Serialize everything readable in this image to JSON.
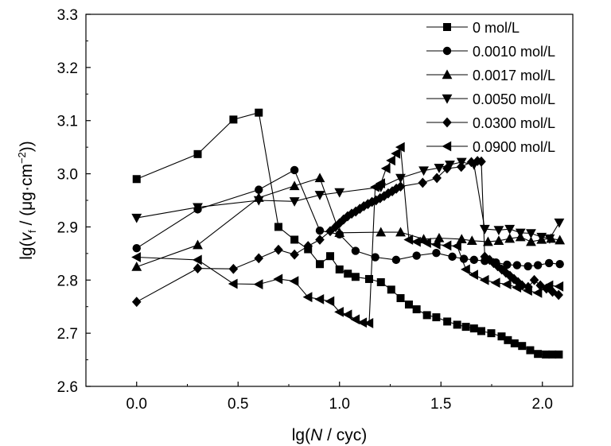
{
  "chart_data": {
    "type": "line",
    "title": "",
    "xlabel_parts": [
      "lg(",
      "N",
      " / cyc)"
    ],
    "ylabel_parts": [
      "lg(",
      "v",
      "f",
      " / (μg·cm",
      "−2",
      "))"
    ],
    "xlim": [
      -0.25,
      2.15
    ],
    "ylim": [
      2.6,
      3.3
    ],
    "xticks": [
      0.0,
      0.5,
      1.0,
      1.5,
      2.0
    ],
    "xtick_labels": [
      "0.0",
      "0.5",
      "1.0",
      "1.5",
      "2.0"
    ],
    "yticks": [
      2.6,
      2.7,
      2.8,
      2.9,
      3.0,
      3.1,
      3.2,
      3.3
    ],
    "ytick_labels": [
      "2.6",
      "2.7",
      "2.8",
      "2.9",
      "3.0",
      "3.1",
      "3.2",
      "3.3"
    ],
    "grid": false,
    "legend_position": "top-right",
    "series": [
      {
        "name": "0 mol/L",
        "marker": "square",
        "x": [
          0.0,
          0.301,
          0.477,
          0.602,
          0.699,
          0.778,
          0.845,
          0.903,
          0.954,
          1.0,
          1.041,
          1.079,
          1.146,
          1.204,
          1.255,
          1.301,
          1.342,
          1.38,
          1.431,
          1.477,
          1.531,
          1.58,
          1.623,
          1.663,
          1.699,
          1.748,
          1.799,
          1.83,
          1.863,
          1.9,
          1.94,
          1.978,
          2.017,
          2.049,
          2.081
        ],
        "y": [
          2.99,
          3.037,
          3.102,
          3.115,
          2.9,
          2.876,
          2.858,
          2.83,
          2.845,
          2.82,
          2.812,
          2.806,
          2.802,
          2.796,
          2.782,
          2.766,
          2.754,
          2.745,
          2.734,
          2.73,
          2.722,
          2.716,
          2.712,
          2.709,
          2.704,
          2.7,
          2.694,
          2.687,
          2.681,
          2.676,
          2.668,
          2.661,
          2.66,
          2.66,
          2.66
        ]
      },
      {
        "name": "0.0010 mol/L",
        "marker": "circle",
        "x": [
          0.0,
          0.301,
          0.602,
          0.778,
          0.903,
          1.0,
          1.079,
          1.176,
          1.279,
          1.38,
          1.477,
          1.556,
          1.613,
          1.663,
          1.716,
          1.771,
          1.826,
          1.875,
          1.929,
          1.978,
          2.033,
          2.086
        ],
        "y": [
          2.86,
          2.933,
          2.97,
          3.007,
          2.893,
          2.886,
          2.855,
          2.843,
          2.838,
          2.846,
          2.851,
          2.844,
          2.84,
          2.838,
          2.836,
          2.833,
          2.829,
          2.828,
          2.826,
          2.828,
          2.832,
          2.83
        ]
      },
      {
        "name": "0.0017 mol/L",
        "marker": "triangle-up",
        "x": [
          0.0,
          0.301,
          0.602,
          0.778,
          0.903,
          1.0,
          1.204,
          1.301,
          1.415,
          1.491,
          1.602,
          1.653,
          1.732,
          1.785,
          1.839,
          1.892,
          1.944,
          1.996,
          2.043,
          2.086
        ],
        "y": [
          2.825,
          2.866,
          2.955,
          2.977,
          2.992,
          2.889,
          2.89,
          2.89,
          2.877,
          2.879,
          2.877,
          2.874,
          2.872,
          2.874,
          2.878,
          2.881,
          2.872,
          2.876,
          2.878,
          2.875
        ]
      },
      {
        "name": "0.0050 mol/L",
        "marker": "triangle-down",
        "x": [
          0.0,
          0.301,
          0.602,
          0.778,
          0.903,
          1.0,
          1.204,
          1.301,
          1.415,
          1.491,
          1.544,
          1.602,
          1.663,
          1.716,
          1.785,
          1.839,
          1.892,
          1.944,
          1.996,
          2.036,
          2.083
        ],
        "y": [
          2.917,
          2.937,
          2.95,
          2.948,
          2.96,
          2.965,
          2.975,
          2.992,
          3.006,
          3.011,
          3.017,
          3.022,
          3.017,
          2.896,
          2.894,
          2.896,
          2.889,
          2.888,
          2.881,
          2.878,
          2.908
        ]
      },
      {
        "name": "0.0300 mol/L",
        "marker": "diamond",
        "x": [
          0.0,
          0.301,
          0.477,
          0.602,
          0.699,
          0.778,
          0.845,
          0.903,
          0.954,
          0.98,
          1.0,
          1.02,
          1.04,
          1.06,
          1.08,
          1.1,
          1.12,
          1.14,
          1.16,
          1.18,
          1.2,
          1.22,
          1.24,
          1.26,
          1.28,
          1.301,
          1.41,
          1.48,
          1.53,
          1.6,
          1.65,
          1.68,
          1.699,
          1.716,
          1.74,
          1.76,
          1.78,
          1.8,
          1.82,
          1.84,
          1.86,
          1.88,
          1.9,
          1.93,
          1.96,
          1.99,
          2.02,
          2.05,
          2.08
        ],
        "y": [
          2.759,
          2.822,
          2.821,
          2.841,
          2.857,
          2.848,
          2.864,
          2.876,
          2.892,
          2.9,
          2.907,
          2.914,
          2.92,
          2.925,
          2.929,
          2.934,
          2.939,
          2.943,
          2.947,
          2.95,
          2.954,
          2.958,
          2.963,
          2.967,
          2.972,
          2.976,
          2.983,
          2.992,
          3.01,
          3.013,
          3.022,
          3.024,
          3.023,
          2.844,
          2.838,
          2.832,
          2.826,
          2.82,
          2.814,
          2.808,
          2.802,
          2.796,
          2.79,
          2.787,
          2.8,
          2.79,
          2.784,
          2.778,
          2.772
        ]
      },
      {
        "name": "0.0900 mol/L",
        "marker": "triangle-left",
        "x": [
          0.0,
          0.301,
          0.477,
          0.602,
          0.699,
          0.778,
          0.845,
          0.903,
          0.954,
          1.0,
          1.041,
          1.079,
          1.114,
          1.146,
          1.176,
          1.204,
          1.23,
          1.255,
          1.279,
          1.301,
          1.342,
          1.38,
          1.431,
          1.477,
          1.531,
          1.58,
          1.623,
          1.663,
          1.716,
          1.771,
          1.826,
          1.875,
          1.929,
          1.978,
          2.033,
          2.083
        ],
        "y": [
          2.843,
          2.838,
          2.793,
          2.792,
          2.802,
          2.798,
          2.768,
          2.764,
          2.76,
          2.74,
          2.735,
          2.726,
          2.72,
          2.719,
          2.975,
          2.982,
          3.01,
          3.025,
          3.038,
          3.05,
          2.876,
          2.872,
          2.87,
          2.867,
          2.865,
          2.864,
          2.82,
          2.81,
          2.8,
          2.795,
          2.792,
          2.786,
          2.78,
          2.776,
          2.79,
          2.788
        ]
      }
    ]
  }
}
